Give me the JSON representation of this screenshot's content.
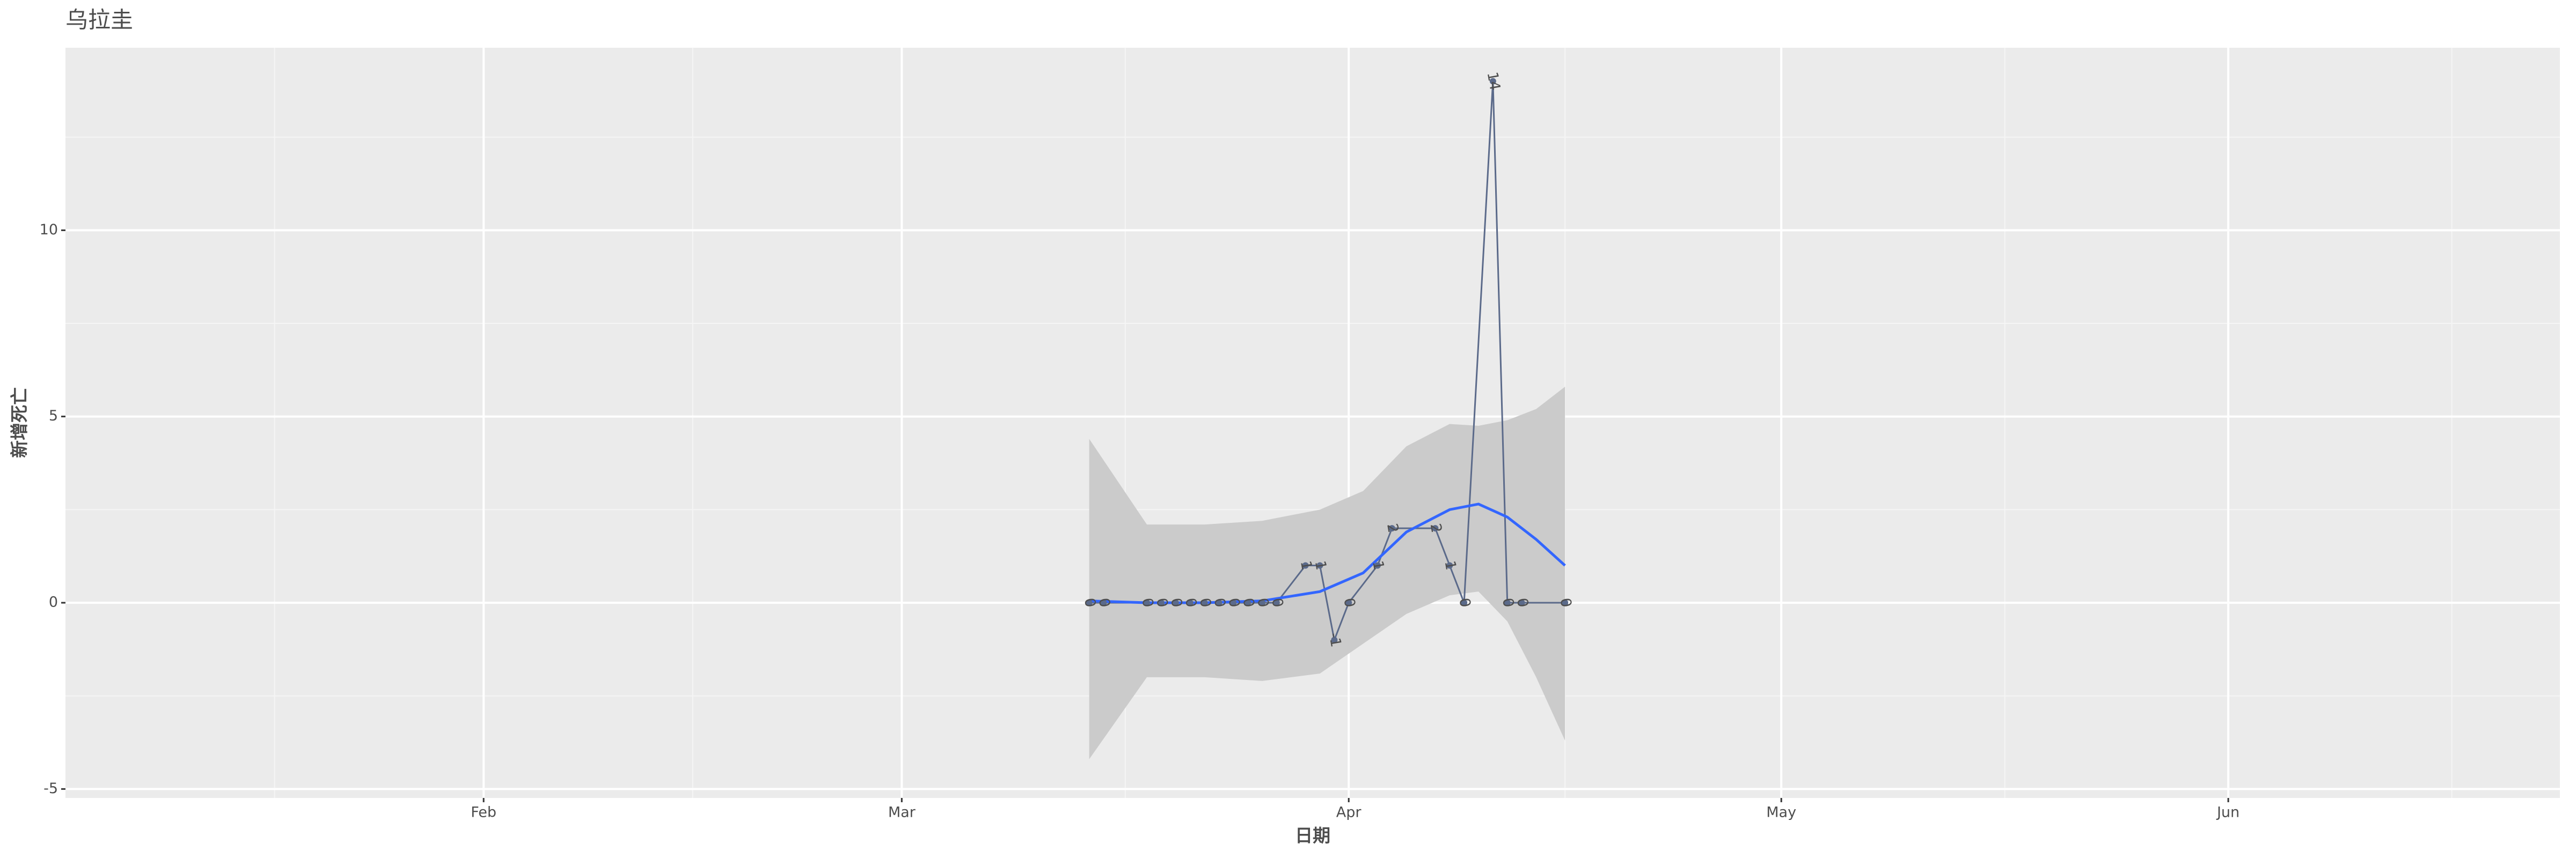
{
  "chart_data": {
    "type": "line",
    "title": "乌拉圭",
    "x_label": "日期",
    "y_label": "新增死亡",
    "x": [
      "2020-03-14",
      "2020-03-15",
      "2020-03-18",
      "2020-03-19",
      "2020-03-20",
      "2020-03-21",
      "2020-03-22",
      "2020-03-23",
      "2020-03-24",
      "2020-03-25",
      "2020-03-26",
      "2020-03-27",
      "2020-03-29",
      "2020-03-30",
      "2020-03-31",
      "2020-04-01",
      "2020-04-03",
      "2020-04-04",
      "2020-04-07",
      "2020-04-08",
      "2020-04-09",
      "2020-04-11",
      "2020-04-12",
      "2020-04-13",
      "2020-04-16"
    ],
    "values": [
      0,
      0,
      0,
      0,
      0,
      0,
      0,
      0,
      0,
      0,
      0,
      0,
      1,
      1,
      -1,
      0,
      1,
      2,
      2,
      1,
      0,
      14,
      0,
      0,
      0
    ],
    "color": "#5b6a8a",
    "smooth": {
      "color": "#3366ff",
      "band_color": "#cbcbcb",
      "x": [
        "2020-03-14",
        "2020-03-18",
        "2020-03-22",
        "2020-03-26",
        "2020-03-30",
        "2020-04-02",
        "2020-04-05",
        "2020-04-08",
        "2020-04-10",
        "2020-04-12",
        "2020-04-14",
        "2020-04-16"
      ],
      "values": [
        0.05,
        0,
        0,
        0.05,
        0.3,
        0.8,
        1.9,
        2.5,
        2.65,
        2.3,
        1.7,
        1.0
      ],
      "lower": [
        -4.2,
        -2.0,
        -2.0,
        -2.1,
        -1.9,
        -1.1,
        -0.3,
        0.2,
        0.3,
        -0.5,
        -2.0,
        -3.7
      ],
      "upper": [
        4.4,
        2.1,
        2.1,
        2.2,
        2.5,
        3.0,
        4.2,
        4.8,
        4.75,
        4.9,
        5.2,
        5.8
      ]
    },
    "xlim": [
      "2020-01-03",
      "2020-06-24"
    ],
    "xticks": [
      {
        "value": "2020-02-01",
        "label": "Feb"
      },
      {
        "value": "2020-03-01",
        "label": "Mar"
      },
      {
        "value": "2020-04-01",
        "label": "Apr"
      },
      {
        "value": "2020-05-01",
        "label": "May"
      },
      {
        "value": "2020-06-01",
        "label": "Jun"
      }
    ],
    "ylim": [
      -5.24,
      14.9
    ],
    "yticks": [
      -5,
      0,
      5,
      10
    ],
    "grid": true
  }
}
